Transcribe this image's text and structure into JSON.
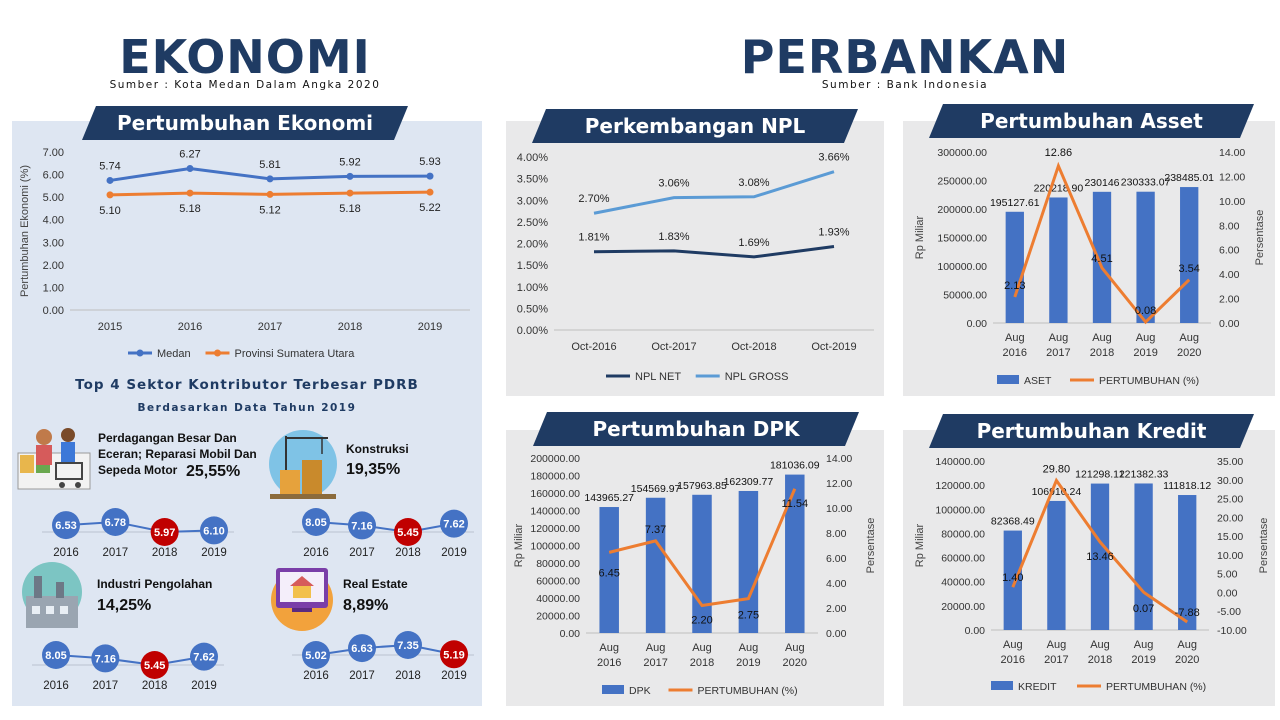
{
  "header": {
    "ekonomi_title": "EKONOMI",
    "ekonomi_source": "Sumber : Kota Medan Dalam Angka 2020",
    "perbankan_title": "PERBANKAN",
    "perbankan_source": "Sumber : Bank Indonesia"
  },
  "ekonomi": {
    "banner": "Pertumbuhan Ekonomi",
    "sectors_title": "Top 4 Sektor Kontributor Terbesar PDRB",
    "sectors_subtitle": "Berdasarkan Data Tahun 2019",
    "sectors": [
      {
        "name": "Perdagangan Besar Dan Eceran; Reparasi Mobil Dan Sepeda Motor",
        "share": "25,55%",
        "icon": "shopping-icon",
        "years": [
          "2016",
          "2017",
          "2018",
          "2019"
        ],
        "values": [
          "6.53",
          "6.78",
          "5.97",
          "6.10"
        ],
        "highlight": 2
      },
      {
        "name": "Konstruksi",
        "share": "19,35%",
        "icon": "construction-icon",
        "years": [
          "2016",
          "2017",
          "2018",
          "2019"
        ],
        "values": [
          "8.05",
          "7.16",
          "5.45",
          "7.62"
        ],
        "highlight": 2
      },
      {
        "name": "Industri Pengolahan",
        "share": "14,25%",
        "icon": "factory-icon",
        "years": [
          "2016",
          "2017",
          "2018",
          "2019"
        ],
        "values": [
          "8.05",
          "7.16",
          "5.45",
          "7.62"
        ],
        "highlight": 2
      },
      {
        "name": "Real Estate",
        "share": "8,89%",
        "icon": "real-estate-icon",
        "years": [
          "2016",
          "2017",
          "2018",
          "2019"
        ],
        "values": [
          "5.02",
          "6.63",
          "7.35",
          "5.19"
        ],
        "highlight": 3
      }
    ]
  },
  "perbankan": {
    "npl_banner": "Perkembangan NPL",
    "asset_banner": "Pertumbuhan Asset",
    "dpk_banner": "Pertumbuhan DPK",
    "kredit_banner": "Pertumbuhan Kredit"
  },
  "colors": {
    "navy": "#1f3b63",
    "blue": "#4472c4",
    "orange": "#ed7d31",
    "lightblue": "#5b9bd5",
    "darkblue": "#1f3b63",
    "red": "#c00000"
  },
  "chart_data": [
    {
      "id": "growth",
      "type": "line",
      "categories": [
        "2015",
        "2016",
        "2017",
        "2018",
        "2019"
      ],
      "series": [
        {
          "name": "Medan",
          "values": [
            5.74,
            6.27,
            5.81,
            5.92,
            5.93
          ],
          "labels": [
            "5.74",
            "6.27",
            "5.81",
            "5.92",
            "5.93"
          ],
          "color": "#4472c4"
        },
        {
          "name": "Provinsi Sumatera Utara",
          "values": [
            5.1,
            5.18,
            5.12,
            5.18,
            5.22
          ],
          "labels": [
            "5.10",
            "5.18",
            "5.12",
            "5.18",
            "5.22"
          ],
          "color": "#ed7d31"
        }
      ],
      "ylabel": "Pertumbuhan Ekonomi (%)",
      "ylim": [
        0,
        7
      ],
      "yticks": [
        "0.00",
        "1.00",
        "2.00",
        "3.00",
        "4.00",
        "5.00",
        "6.00",
        "7.00"
      ],
      "legend": "bottom"
    },
    {
      "id": "npl",
      "type": "line",
      "categories": [
        "Oct-2016",
        "Oct-2017",
        "Oct-2018",
        "Oct-2019"
      ],
      "series": [
        {
          "name": "NPL NET",
          "values": [
            1.81,
            1.83,
            1.69,
            1.93
          ],
          "labels": [
            "1.81%",
            "1.83%",
            "1.69%",
            "1.93%"
          ],
          "color": "#1f3b63"
        },
        {
          "name": "NPL GROSS",
          "values": [
            2.7,
            3.06,
            3.08,
            3.66
          ],
          "labels": [
            "2.70%",
            "3.06%",
            "3.08%",
            "3.66%"
          ],
          "color": "#5b9bd5"
        }
      ],
      "ylim": [
        0,
        4
      ],
      "yticks": [
        "0.00%",
        "0.50%",
        "1.00%",
        "1.50%",
        "2.00%",
        "2.50%",
        "3.00%",
        "3.50%",
        "4.00%"
      ],
      "legend": "bottom"
    },
    {
      "id": "asset",
      "type": "bar",
      "categories": [
        [
          "Aug",
          "2016"
        ],
        [
          "Aug",
          "2017"
        ],
        [
          "Aug",
          "2018"
        ],
        [
          "Aug",
          "2019"
        ],
        [
          "Aug",
          "2020"
        ]
      ],
      "bars": {
        "name": "ASET",
        "values": [
          195127.61,
          220218.9,
          230146,
          230333.07,
          238485.01
        ],
        "labels": [
          "195127.61",
          "220218.90",
          "230146",
          "230333.07",
          "238485.01"
        ],
        "color": "#4472c4"
      },
      "line": {
        "name": "PERTUMBUHAN (%)",
        "values": [
          2.13,
          12.86,
          4.51,
          0.08,
          3.54
        ],
        "labels": [
          "2.13",
          "12.86",
          "4.51",
          "0.08",
          "3.54"
        ],
        "color": "#ed7d31"
      },
      "ylabel": "Rp Miliar",
      "y2label": "Persentase",
      "ylim": [
        0,
        300000
      ],
      "y2lim": [
        0,
        14
      ],
      "yticks": [
        "0.00",
        "50000.00",
        "100000.00",
        "150000.00",
        "200000.00",
        "250000.00",
        "300000.00"
      ],
      "y2ticks": [
        "0.00",
        "2.00",
        "4.00",
        "6.00",
        "8.00",
        "10.00",
        "12.00",
        "14.00"
      ],
      "legend": "bottom"
    },
    {
      "id": "dpk",
      "type": "bar",
      "categories": [
        [
          "Aug",
          "2016"
        ],
        [
          "Aug",
          "2017"
        ],
        [
          "Aug",
          "2018"
        ],
        [
          "Aug",
          "2019"
        ],
        [
          "Aug",
          "2020"
        ]
      ],
      "bars": {
        "name": "DPK",
        "values": [
          143965.27,
          154569.97,
          157963.85,
          162309.77,
          181036.09
        ],
        "labels": [
          "143965.27",
          "154569.97",
          "157963.85",
          "162309.77",
          "181036.09"
        ],
        "color": "#4472c4"
      },
      "line": {
        "name": "PERTUMBUHAN (%)",
        "values": [
          6.45,
          7.37,
          2.2,
          2.75,
          11.54
        ],
        "labels": [
          "6.45",
          "7.37",
          "2.20",
          "2.75",
          "11.54"
        ],
        "color": "#ed7d31"
      },
      "ylabel": "Rp Miliar",
      "y2label": "Persentase",
      "ylim": [
        0,
        200000
      ],
      "y2lim": [
        0,
        14
      ],
      "yticks": [
        "0.00",
        "20000.00",
        "40000.00",
        "60000.00",
        "80000.00",
        "100000.00",
        "120000.00",
        "140000.00",
        "160000.00",
        "180000.00",
        "200000.00"
      ],
      "y2ticks": [
        "0.00",
        "2.00",
        "4.00",
        "6.00",
        "8.00",
        "10.00",
        "12.00",
        "14.00"
      ],
      "legend": "bottom"
    },
    {
      "id": "kredit",
      "type": "bar",
      "categories": [
        [
          "Aug",
          "2016"
        ],
        [
          "Aug",
          "2017"
        ],
        [
          "Aug",
          "2018"
        ],
        [
          "Aug",
          "2019"
        ],
        [
          "Aug",
          "2020"
        ]
      ],
      "bars": {
        "name": "KREDIT",
        "values": [
          82368.49,
          106910.24,
          121298.12,
          121382.33,
          111818.12
        ],
        "labels": [
          "82368.49",
          "106910.24",
          "121298.12",
          "121382.33",
          "111818.12"
        ],
        "color": "#4472c4"
      },
      "line": {
        "name": "PERTUMBUHAN (%)",
        "values": [
          1.4,
          29.8,
          13.46,
          0.07,
          -7.88
        ],
        "labels": [
          "1.40",
          "29.80",
          "13.46",
          "0.07",
          "-7.88"
        ],
        "color": "#ed7d31"
      },
      "ylabel": "Rp Miliar",
      "y2label": "Persentase",
      "ylim": [
        0,
        140000
      ],
      "y2lim": [
        -10,
        35
      ],
      "yticks": [
        "0.00",
        "20000.00",
        "40000.00",
        "60000.00",
        "80000.00",
        "100000.00",
        "120000.00",
        "140000.00"
      ],
      "y2ticks": [
        "-10.00",
        "-5.00",
        "0.00",
        "5.00",
        "10.00",
        "15.00",
        "20.00",
        "25.00",
        "30.00",
        "35.00"
      ],
      "legend": "bottom"
    }
  ]
}
